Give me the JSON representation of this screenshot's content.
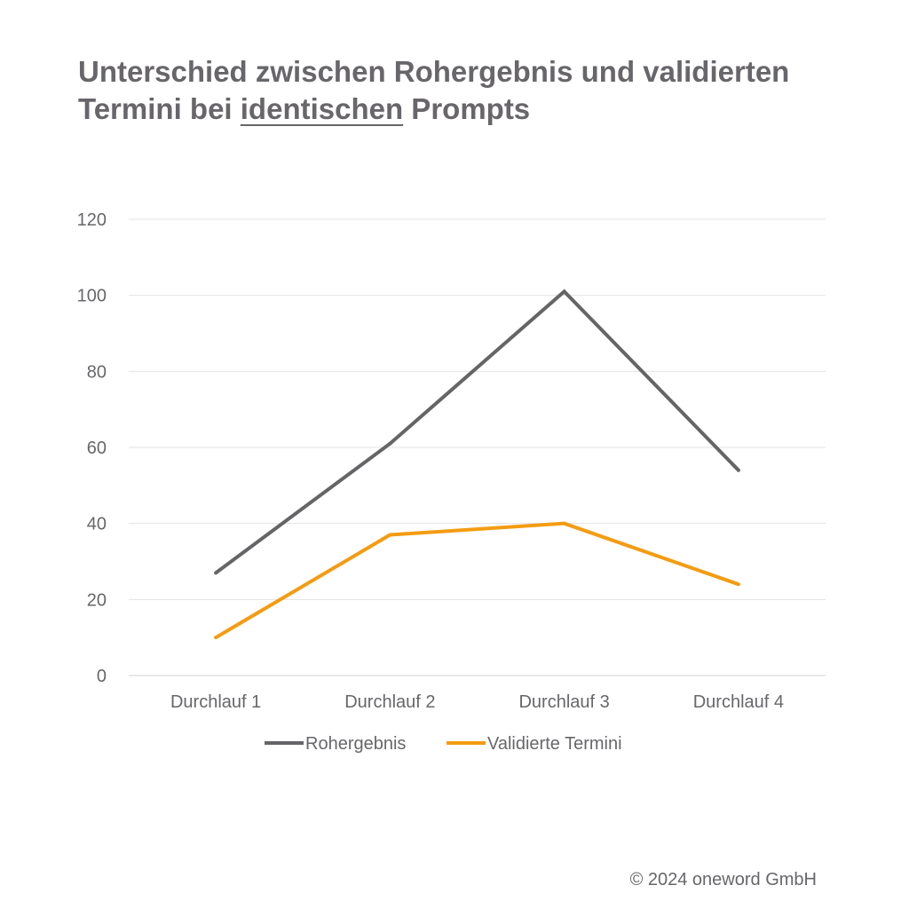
{
  "chart_data": {
    "type": "line",
    "title_parts": [
      "Unterschied zwischen Rohergebnis und validierten Termini bei ",
      "identischen",
      " Prompts"
    ],
    "categories": [
      "Durchlauf 1",
      "Durchlauf 2",
      "Durchlauf 3",
      "Durchlauf 4"
    ],
    "series": [
      {
        "name": "Rohergebnis",
        "values": [
          27,
          61,
          101,
          54
        ],
        "color": "#656467"
      },
      {
        "name": "Validierte Termini",
        "values": [
          10,
          37,
          40,
          24
        ],
        "color": "#f39c12"
      }
    ],
    "ylim": [
      0,
      120
    ],
    "yticks": [
      0,
      20,
      40,
      60,
      80,
      100,
      120
    ],
    "grid": true,
    "legend_position": "bottom"
  },
  "footer": {
    "copyright": "© 2024 oneword GmbH"
  }
}
